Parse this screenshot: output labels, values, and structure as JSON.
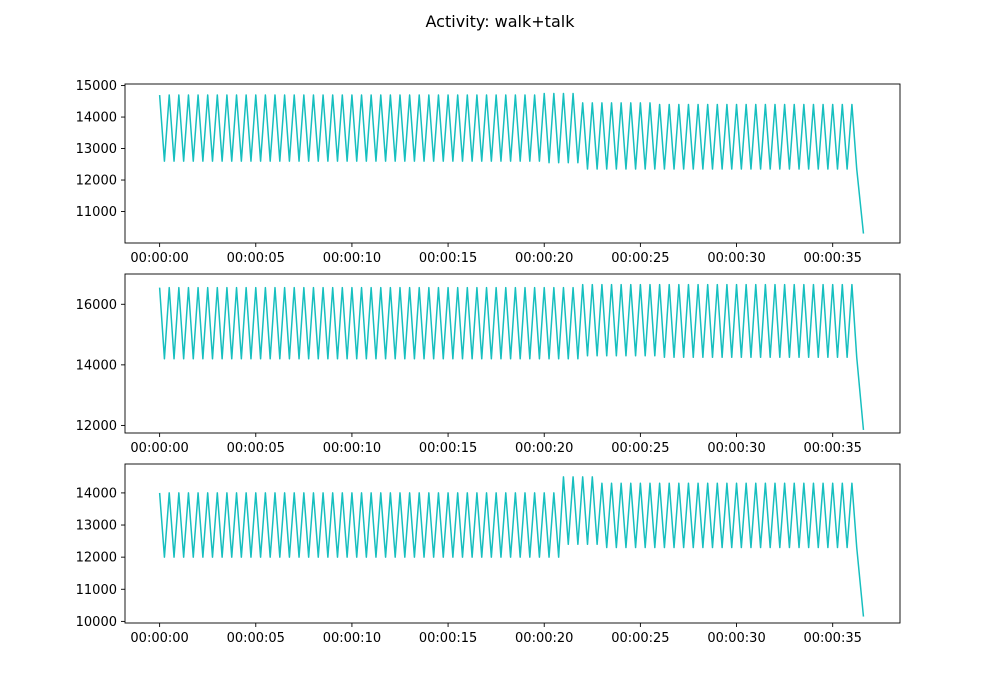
{
  "figure": {
    "title": "Activity: walk+talk"
  },
  "colors": {
    "line": "#17bfbf",
    "axes": "#000000",
    "background": "#ffffff"
  },
  "chart_data": [
    {
      "type": "line",
      "x_unit": "seconds",
      "x_range": [
        0,
        36.6
      ],
      "xlim": [
        -1.8,
        38.5
      ],
      "x_ticks": [
        0,
        5,
        10,
        15,
        20,
        25,
        30,
        35
      ],
      "x_tick_labels": [
        "00:00:00",
        "00:00:05",
        "00:00:10",
        "00:00:15",
        "00:00:20",
        "00:00:25",
        "00:00:30",
        "00:00:35"
      ],
      "ylim": [
        10000,
        15050
      ],
      "y_ticks": [
        11000,
        12000,
        13000,
        14000,
        15000
      ],
      "y_tick_labels": [
        "11000",
        "12000",
        "13000",
        "14000",
        "15000"
      ],
      "cycles_per_second": 2.0,
      "segments": [
        {
          "from": 0,
          "to": 20,
          "high": 14700,
          "low": 12600
        },
        {
          "from": 20,
          "to": 22,
          "high": 14750,
          "low": 12550
        },
        {
          "from": 22,
          "to": 26,
          "high": 14450,
          "low": 12350
        },
        {
          "from": 26,
          "to": 36.3,
          "high": 14400,
          "low": 12350
        }
      ],
      "end_value": 10300,
      "grid": false,
      "legend": false
    },
    {
      "type": "line",
      "x_unit": "seconds",
      "x_range": [
        0,
        36.6
      ],
      "xlim": [
        -1.8,
        38.5
      ],
      "x_ticks": [
        0,
        5,
        10,
        15,
        20,
        25,
        30,
        35
      ],
      "x_tick_labels": [
        "00:00:00",
        "00:00:05",
        "00:00:10",
        "00:00:15",
        "00:00:20",
        "00:00:25",
        "00:00:30",
        "00:00:35"
      ],
      "ylim": [
        11750,
        17000
      ],
      "y_ticks": [
        12000,
        14000,
        16000
      ],
      "y_tick_labels": [
        "12000",
        "14000",
        "16000"
      ],
      "cycles_per_second": 2.0,
      "segments": [
        {
          "from": 0,
          "to": 22,
          "high": 16550,
          "low": 14200
        },
        {
          "from": 22,
          "to": 26,
          "high": 16650,
          "low": 14300
        },
        {
          "from": 26,
          "to": 36.3,
          "high": 16650,
          "low": 14250
        }
      ],
      "end_value": 11850,
      "grid": false,
      "legend": false
    },
    {
      "type": "line",
      "x_unit": "seconds",
      "x_range": [
        0,
        36.6
      ],
      "xlim": [
        -1.8,
        38.5
      ],
      "x_ticks": [
        0,
        5,
        10,
        15,
        20,
        25,
        30,
        35
      ],
      "x_tick_labels": [
        "00:00:00",
        "00:00:05",
        "00:00:10",
        "00:00:15",
        "00:00:20",
        "00:00:25",
        "00:00:30",
        "00:00:35"
      ],
      "ylim": [
        9950,
        14900
      ],
      "y_ticks": [
        10000,
        11000,
        12000,
        13000,
        14000
      ],
      "y_tick_labels": [
        "10000",
        "11000",
        "12000",
        "13000",
        "14000"
      ],
      "cycles_per_second": 2.0,
      "segments": [
        {
          "from": 0,
          "to": 21,
          "high": 14000,
          "low": 12000
        },
        {
          "from": 21,
          "to": 23,
          "high": 14500,
          "low": 12400
        },
        {
          "from": 23,
          "to": 36.3,
          "high": 14300,
          "low": 12300
        }
      ],
      "end_value": 10150,
      "grid": false,
      "legend": false
    }
  ]
}
